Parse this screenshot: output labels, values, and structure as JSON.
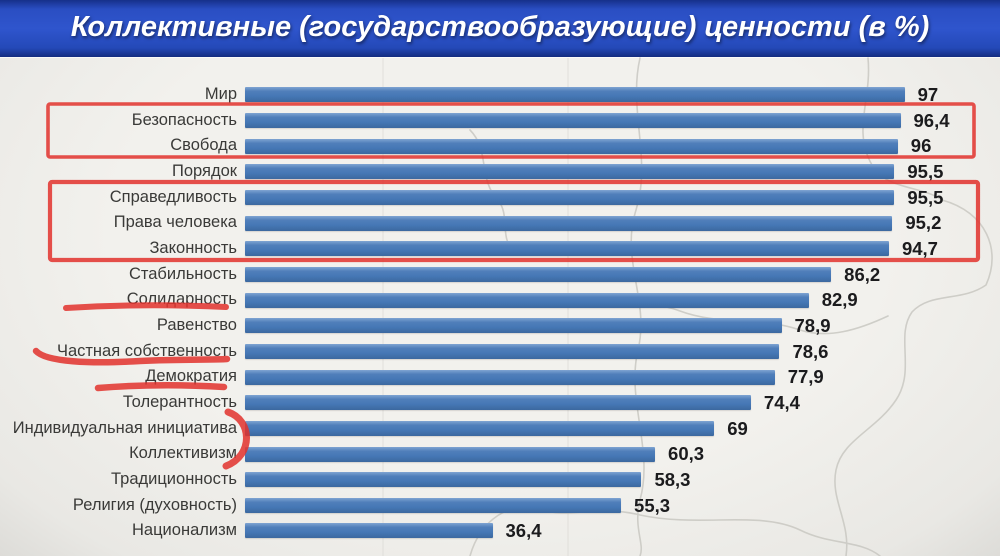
{
  "title": "Коллективные (государствообразующие) ценности (в %)",
  "chart_data": {
    "type": "bar",
    "orientation": "horizontal",
    "title": "Коллективные (государствообразующие) ценности (в %)",
    "xlabel": "",
    "ylabel": "",
    "xlim": [
      0,
      100
    ],
    "grid": false,
    "legend": null,
    "categories": [
      "Мир",
      "Безопасность",
      "Свобода",
      "Порядок",
      "Справедливость",
      "Права человека",
      "Законность",
      "Стабильность",
      "Солидарность",
      "Равенство",
      "Частная собственность",
      "Демократия",
      "Толерантность",
      "Индивидуальная инициатива",
      "Коллективизм",
      "Традиционность",
      "Религия (духовность)",
      "Национализм"
    ],
    "values": [
      97,
      96.4,
      96,
      95.5,
      95.5,
      95.2,
      94.7,
      86.2,
      82.9,
      78.9,
      78.6,
      77.9,
      74.4,
      69,
      60.3,
      58.3,
      55.3,
      36.4
    ],
    "value_labels": [
      "97",
      "96,4",
      "96",
      "95,5",
      "95,5",
      "95,2",
      "94,7",
      "86,2",
      "82,9",
      "78,9",
      "78,6",
      "77,9",
      "74,4",
      "69",
      "60,3",
      "58,3",
      "55,3",
      "36,4"
    ],
    "annotations": {
      "boxed_groups": [
        [
          "Безопасность",
          "Свобода"
        ],
        [
          "Справедливость",
          "Права человека",
          "Законность"
        ]
      ],
      "underlined_labels": [
        "Солидарность",
        "Частная собственность",
        "Демократия"
      ],
      "bracketed_labels": [
        "Индивидуальная инициатива",
        "Коллективизм"
      ],
      "annotation_color": "#e2322d"
    }
  },
  "colors": {
    "banner_blue": "#2f55cd",
    "bar_blue": "#4a7cba",
    "background": "#efeeea",
    "label_text": "#3a3a38",
    "value_text": "#1b1b1d",
    "map_outline": "#c9c8c2",
    "annotation_red": "#e2322d"
  }
}
